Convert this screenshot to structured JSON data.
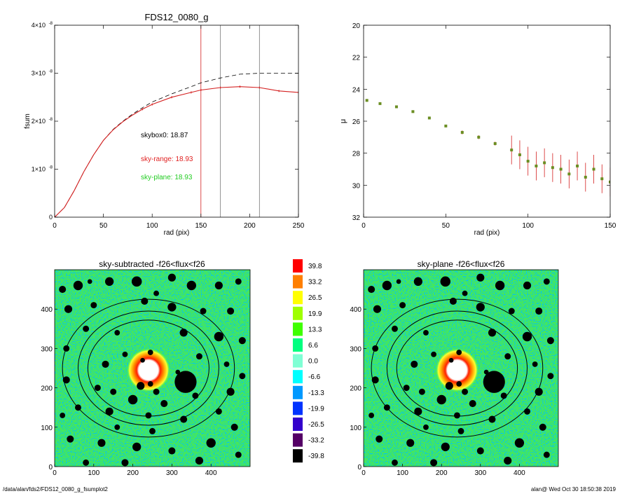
{
  "footer": {
    "path": "/data/alan/fds2/FDS12_0080_g_fsumplot2",
    "user_date": "alan@  Wed Oct 30 18:50:38 2019"
  },
  "chart_data": [
    {
      "type": "line",
      "title": "FDS12_0080_g",
      "xlabel": "rad (pix)",
      "ylabel": "fsum",
      "xlim": [
        0,
        250
      ],
      "ylim": [
        0,
        4e-08
      ],
      "xticks": [
        0,
        50,
        100,
        150,
        200,
        250
      ],
      "ytick_labels": [
        {
          "value": 0,
          "label": "0"
        },
        {
          "value": 1e-08,
          "label": "1×10",
          "exp": "-8"
        },
        {
          "value": 2e-08,
          "label": "2×10",
          "exp": "-8"
        },
        {
          "value": 3e-08,
          "label": "3×10",
          "exp": "-8"
        },
        {
          "value": 4e-08,
          "label": "4×10",
          "exp": "-8"
        }
      ],
      "vlines": [
        {
          "x": 150,
          "color": "#d42020"
        },
        {
          "x": 170,
          "color": "#777777"
        },
        {
          "x": 210,
          "color": "#777777"
        }
      ],
      "series": [
        {
          "style": "dashed",
          "color": "#000000",
          "x": [
            0,
            10,
            20,
            30,
            40,
            50,
            60,
            70,
            80,
            90,
            100,
            120,
            140,
            150,
            170,
            190,
            210,
            230,
            250
          ],
          "y": [
            0,
            2e-09,
            5.5e-09,
            9.5e-09,
            1.3e-08,
            1.6e-08,
            1.83e-08,
            2e-08,
            2.15e-08,
            2.28e-08,
            2.4e-08,
            2.57e-08,
            2.72e-08,
            2.8e-08,
            2.9e-08,
            2.98e-08,
            3e-08,
            3e-08,
            3e-08
          ]
        },
        {
          "style": "solid",
          "color": "#d42020",
          "x": [
            0,
            10,
            20,
            30,
            40,
            50,
            60,
            70,
            80,
            90,
            100,
            120,
            140,
            150,
            170,
            190,
            210,
            230,
            250
          ],
          "y": [
            0,
            2e-09,
            5.5e-09,
            9.5e-09,
            1.3e-08,
            1.6e-08,
            1.82e-08,
            1.99e-08,
            2.13e-08,
            2.25e-08,
            2.35e-08,
            2.5e-08,
            2.6e-08,
            2.65e-08,
            2.7e-08,
            2.72e-08,
            2.7e-08,
            2.63e-08,
            2.6e-08
          ]
        }
      ],
      "annotations": [
        {
          "text": "skybox0: 18.87",
          "color": "#000000"
        },
        {
          "text": "sky-range: 18.93",
          "color": "#e02020"
        },
        {
          "text": "sky-plane: 18.93",
          "color": "#22cc22"
        }
      ]
    },
    {
      "type": "scatter",
      "xlabel": "rad (pix)",
      "ylabel": "μ",
      "xlim": [
        0,
        150
      ],
      "ylim": [
        32,
        20
      ],
      "xticks": [
        0,
        50,
        100,
        150
      ],
      "yticks": [
        20,
        22,
        24,
        26,
        28,
        30,
        32
      ],
      "x": [
        2,
        10,
        20,
        30,
        40,
        50,
        60,
        70,
        80,
        90,
        95,
        100,
        105,
        110,
        115,
        120,
        125,
        130,
        135,
        140,
        145,
        150
      ],
      "y": [
        24.7,
        24.9,
        25.1,
        25.4,
        25.8,
        26.3,
        26.7,
        27.0,
        27.4,
        27.8,
        28.1,
        28.5,
        28.8,
        28.6,
        28.9,
        29.0,
        29.3,
        28.8,
        29.5,
        29.0,
        29.6,
        29.8
      ],
      "colors": {
        "points": "#6b8e23",
        "errors": "#d42020"
      }
    },
    {
      "type": "heatmap",
      "title": "sky-subtracted -f26<flux<f26",
      "xlim": [
        0,
        500
      ],
      "ylim": [
        0,
        500
      ],
      "xticks": [
        0,
        100,
        200,
        300,
        400
      ],
      "yticks": [
        0,
        100,
        200,
        300,
        400
      ],
      "ellipses": {
        "center": [
          240,
          250
        ],
        "radii": [
          [
            220,
            175
          ],
          [
            180,
            145
          ],
          [
            155,
            122
          ]
        ]
      },
      "bright_core": {
        "center": [
          240,
          245
        ],
        "radius": 55
      }
    },
    {
      "type": "heatmap",
      "title": "sky-plane -f26<flux<f26",
      "xlim": [
        0,
        500
      ],
      "ylim": [
        0,
        500
      ],
      "xticks": [
        0,
        100,
        200,
        300,
        400
      ],
      "yticks": [
        0,
        100,
        200,
        300,
        400
      ],
      "ellipses": {
        "center": [
          240,
          250
        ],
        "radii": [
          [
            220,
            175
          ],
          [
            180,
            145
          ],
          [
            155,
            122
          ]
        ]
      },
      "bright_core": {
        "center": [
          240,
          245
        ],
        "radius": 55
      }
    },
    {
      "type": "colorbar",
      "labels": [
        "39.8",
        "33.2",
        "26.5",
        "19.9",
        "13.3",
        "6.6",
        "0.0",
        "-6.6",
        "-13.3",
        "-19.9",
        "-26.5",
        "-33.2",
        "-39.8"
      ],
      "colors": [
        "#ff0000",
        "#ff7f00",
        "#ffff00",
        "#9fff00",
        "#3fff00",
        "#00ff7f",
        "#7fffd4",
        "#00ffff",
        "#0099ff",
        "#0033ff",
        "#3300cc",
        "#550066",
        "#000000"
      ]
    }
  ]
}
